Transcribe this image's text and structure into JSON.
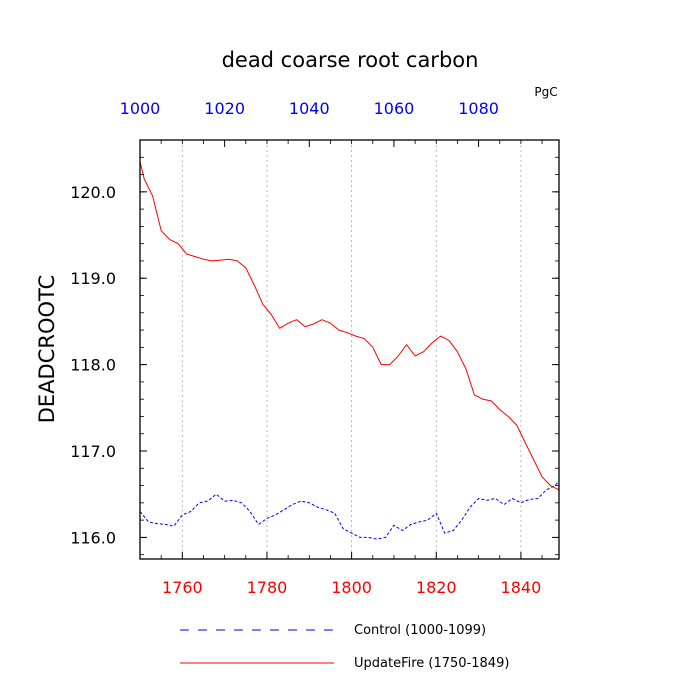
{
  "chart_data": {
    "type": "line",
    "title": "dead coarse root carbon",
    "units": "PgC",
    "ylabel": "DEADCROOTC",
    "xlabel": "",
    "ylim": [
      115.75,
      120.6
    ],
    "grid": "vertical dotted at bottom-axis ticks",
    "bottom_axis": {
      "range": [
        1750,
        1849
      ],
      "ticks": [
        1760,
        1780,
        1800,
        1820,
        1840
      ],
      "tick_labels": [
        "1760",
        "1780",
        "1800",
        "1820",
        "1840"
      ],
      "color": "#ff0000"
    },
    "top_axis": {
      "range": [
        1000,
        1099
      ],
      "ticks": [
        1000,
        1020,
        1040,
        1060,
        1080
      ],
      "tick_labels": [
        "1000",
        "1020",
        "1040",
        "1060",
        "1080"
      ],
      "color": "#0000ff"
    },
    "y_ticks": [
      116.0,
      117.0,
      118.0,
      119.0,
      120.0
    ],
    "y_tick_labels": [
      "116.0",
      "117.0",
      "118.0",
      "119.0",
      "120.0"
    ],
    "legend_placement": "bottom",
    "series": [
      {
        "name": "Control (1000-1099)",
        "axis": "top",
        "color": "#0000ff",
        "dash": "dashed",
        "x": [
          1000,
          1002,
          1004,
          1006,
          1008,
          1010,
          1012,
          1014,
          1016,
          1018,
          1020,
          1022,
          1024,
          1026,
          1028,
          1030,
          1032,
          1034,
          1036,
          1038,
          1040,
          1042,
          1044,
          1046,
          1048,
          1050,
          1052,
          1054,
          1056,
          1058,
          1060,
          1062,
          1064,
          1066,
          1068,
          1070,
          1072,
          1074,
          1076,
          1078,
          1080,
          1082,
          1084,
          1086,
          1088,
          1090,
          1092,
          1094,
          1096,
          1098,
          1099
        ],
        "y": [
          116.3,
          116.18,
          116.16,
          116.15,
          116.13,
          116.26,
          116.3,
          116.4,
          116.42,
          116.5,
          116.42,
          116.43,
          116.4,
          116.3,
          116.15,
          116.22,
          116.26,
          116.32,
          116.38,
          116.42,
          116.4,
          116.35,
          116.32,
          116.28,
          116.1,
          116.05,
          116.0,
          116.0,
          115.98,
          116.0,
          116.14,
          116.08,
          116.15,
          116.18,
          116.2,
          116.28,
          116.05,
          116.08,
          116.2,
          116.35,
          116.45,
          116.43,
          116.45,
          116.38,
          116.45,
          116.4,
          116.44,
          116.45,
          116.55,
          116.6,
          116.65
        ]
      },
      {
        "name": "UpdateFire (1750-1849)",
        "axis": "bottom",
        "color": "#ff0000",
        "dash": "solid",
        "x": [
          1750,
          1751,
          1753,
          1755,
          1757,
          1759,
          1761,
          1763,
          1765,
          1767,
          1769,
          1771,
          1773,
          1775,
          1777,
          1779,
          1781,
          1783,
          1785,
          1787,
          1789,
          1791,
          1793,
          1795,
          1797,
          1799,
          1801,
          1803,
          1805,
          1807,
          1809,
          1811,
          1813,
          1815,
          1817,
          1819,
          1821,
          1823,
          1825,
          1827,
          1829,
          1831,
          1833,
          1835,
          1837,
          1839,
          1841,
          1843,
          1845,
          1847,
          1849
        ],
        "y": [
          120.35,
          120.15,
          119.95,
          119.55,
          119.45,
          119.4,
          119.28,
          119.25,
          119.22,
          119.2,
          119.21,
          119.22,
          119.2,
          119.12,
          118.92,
          118.7,
          118.58,
          118.42,
          118.48,
          118.52,
          118.44,
          118.47,
          118.52,
          118.48,
          118.4,
          118.37,
          118.33,
          118.3,
          118.2,
          118.0,
          118.0,
          118.1,
          118.23,
          118.1,
          118.15,
          118.25,
          118.33,
          118.28,
          118.15,
          117.95,
          117.65,
          117.6,
          117.58,
          117.48,
          117.4,
          117.3,
          117.1,
          116.9,
          116.7,
          116.6,
          116.55
        ]
      }
    ]
  }
}
